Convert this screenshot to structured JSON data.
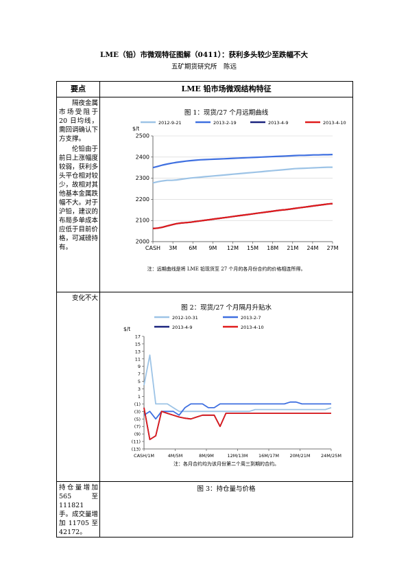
{
  "header": {
    "title": "LME（铅）市微观特征图解（0411）：获利多头较少至跌幅不大",
    "author": "五矿期货研究所　陈远"
  },
  "table": {
    "col_left": "要点",
    "col_right": "LME 铅市场微观结构特征",
    "rows": [
      {
        "paras": [
          "隔夜金属市场受阻于 20 日均线，需回调确认下方支撑。",
          "伦铅由于前日上涨幅度较弱，获利多头平仓相对较少，故相对其他基本金属跌幅不大。对于沪铅，建议的布局多单成本应低于目前价格，可减磅持有。"
        ],
        "fig_title": "图 1：现货/27 个月远期曲线",
        "note": "注：远期曲线是将 LME 铅现货至 27 个月的各月份合约的价格相连所得。"
      },
      {
        "paras": [
          "变化不大"
        ],
        "fig_title": "图 2：现货/27 个月隔月升贴水",
        "note": "注：各月合约均为该月份第二个周三到期的合约。"
      },
      {
        "paras": [
          "持仓量增加 565 至 111821 手。成交量增加 11705 至 42172。"
        ],
        "fig_title": "图 3：持仓量与价格"
      }
    ]
  },
  "chart_data": [
    {
      "type": "line",
      "ylabel": "$/t",
      "ylim": [
        2000,
        2500
      ],
      "yticks": [
        "2000",
        "2100",
        "2200",
        "2300",
        "2400",
        "2500"
      ],
      "xticks": [
        "CASH",
        "3M",
        "6M",
        "9M",
        "12M",
        "15M",
        "18M",
        "21M",
        "24M",
        "27M"
      ],
      "grid": true,
      "legend": "top",
      "series": [
        {
          "name": "2012-9-21",
          "color": "#9cc3e6",
          "values": [
            2278,
            2283,
            2287,
            2290,
            2290,
            2292,
            2295,
            2298,
            2301,
            2303,
            2305,
            2307,
            2309,
            2311,
            2313,
            2315,
            2317,
            2319,
            2321,
            2323,
            2325,
            2327,
            2329,
            2331,
            2333,
            2335,
            2337,
            2339,
            2341,
            2343,
            2345,
            2346,
            2347,
            2348,
            2349,
            2350,
            2351,
            2352,
            2352
          ]
        },
        {
          "name": "2013-2-19",
          "color": "#3e6fe0",
          "values": [
            2350,
            2356,
            2362,
            2367,
            2371,
            2375,
            2378,
            2381,
            2383,
            2385,
            2387,
            2388,
            2389,
            2390,
            2391,
            2392,
            2393,
            2394,
            2395,
            2396,
            2397,
            2398,
            2399,
            2400,
            2401,
            2402,
            2403,
            2404,
            2405,
            2406,
            2407,
            2408,
            2408,
            2409,
            2410,
            2410,
            2411,
            2411,
            2412
          ]
        },
        {
          "name": "2013-4-9",
          "color": "#1a237e",
          "values": [
            2062,
            2064,
            2068,
            2074,
            2080,
            2085,
            2088,
            2090,
            2092,
            2095,
            2098,
            2101,
            2104,
            2107,
            2110,
            2113,
            2116,
            2119,
            2122,
            2125,
            2128,
            2131,
            2134,
            2137,
            2140,
            2143,
            2146,
            2149,
            2151,
            2154,
            2157,
            2160,
            2163,
            2166,
            2169,
            2172,
            2175,
            2178,
            2180
          ]
        },
        {
          "name": "2013-4-10",
          "color": "#e01b1b",
          "values": [
            2062,
            2064,
            2068,
            2074,
            2080,
            2085,
            2088,
            2090,
            2092,
            2095,
            2098,
            2101,
            2104,
            2107,
            2110,
            2113,
            2116,
            2119,
            2122,
            2125,
            2128,
            2131,
            2134,
            2137,
            2140,
            2143,
            2146,
            2149,
            2151,
            2154,
            2157,
            2160,
            2163,
            2166,
            2169,
            2172,
            2175,
            2178,
            2180
          ]
        }
      ]
    },
    {
      "type": "line",
      "ylabel": "$/t",
      "ylim": [
        -13,
        17
      ],
      "yticks": [
        "(13)",
        "(11)",
        "(9)",
        "(7)",
        "(5)",
        "(3)",
        "(1)",
        "1",
        "3",
        "5",
        "7",
        "9",
        "11",
        "13",
        "15",
        "17"
      ],
      "xticks": [
        "CASH/1M",
        "4M/5M",
        "8M/9M",
        "12M/13M",
        "16M/17M",
        "20M/21M",
        "24M/25M"
      ],
      "grid": false,
      "legend": "top",
      "series": [
        {
          "name": "2012-10-31",
          "color": "#9cc3e6",
          "values": [
            4,
            12,
            -1,
            -1,
            -1,
            -2,
            -3,
            -3,
            -3,
            -3,
            -3,
            -3,
            -3,
            -3,
            -3,
            -3,
            -3,
            -3,
            -3,
            -2.5,
            -2.5,
            -2.5,
            -2.5,
            -2.5,
            -2.5,
            -2.5,
            -2.5,
            -2.5,
            -2.5,
            -2.5,
            -2.5,
            -2.5,
            -2
          ]
        },
        {
          "name": "2013-2-7",
          "color": "#3e6fe0",
          "values": [
            -4,
            -3,
            -5,
            -3,
            -3,
            -3,
            -4,
            -2,
            -1,
            -1,
            -1,
            -2,
            -2,
            -1,
            -1,
            -1,
            -1,
            -1,
            -1,
            -1,
            -1,
            -1,
            -1,
            -1,
            -1,
            -0.5,
            -0.5,
            -1,
            -1,
            -1,
            -1,
            -1,
            -1
          ]
        },
        {
          "name": "2013-4-9",
          "color": "#1a237e",
          "values": [
            -2,
            -10.5,
            -9.5,
            -3,
            -3.5,
            -4,
            -4.5,
            -4.8,
            -5,
            -4.5,
            -4,
            -4,
            -4,
            -7,
            -3.5,
            -3.5,
            -3.5,
            -3.5,
            -3.5,
            -3.5,
            -3.5,
            -3.5,
            -3.5,
            -3.5,
            -3.5,
            -3.5,
            -3.5,
            -3.5,
            -3.5,
            -3.5,
            -3.5,
            -3.5,
            -3.5
          ]
        },
        {
          "name": "2013-4-10",
          "color": "#e01b1b",
          "values": [
            -2,
            -10.5,
            -9.5,
            -3,
            -3.5,
            -4,
            -4.5,
            -4.8,
            -5,
            -4.5,
            -4,
            -4,
            -4,
            -7,
            -3.5,
            -3.5,
            -3.5,
            -3.5,
            -3.5,
            -3.5,
            -3.5,
            -3.5,
            -3.5,
            -3.5,
            -3.5,
            -3.5,
            -3.5,
            -3.5,
            -3.5,
            -3.5,
            -3.5,
            -3.5,
            -3.5
          ]
        }
      ]
    }
  ]
}
